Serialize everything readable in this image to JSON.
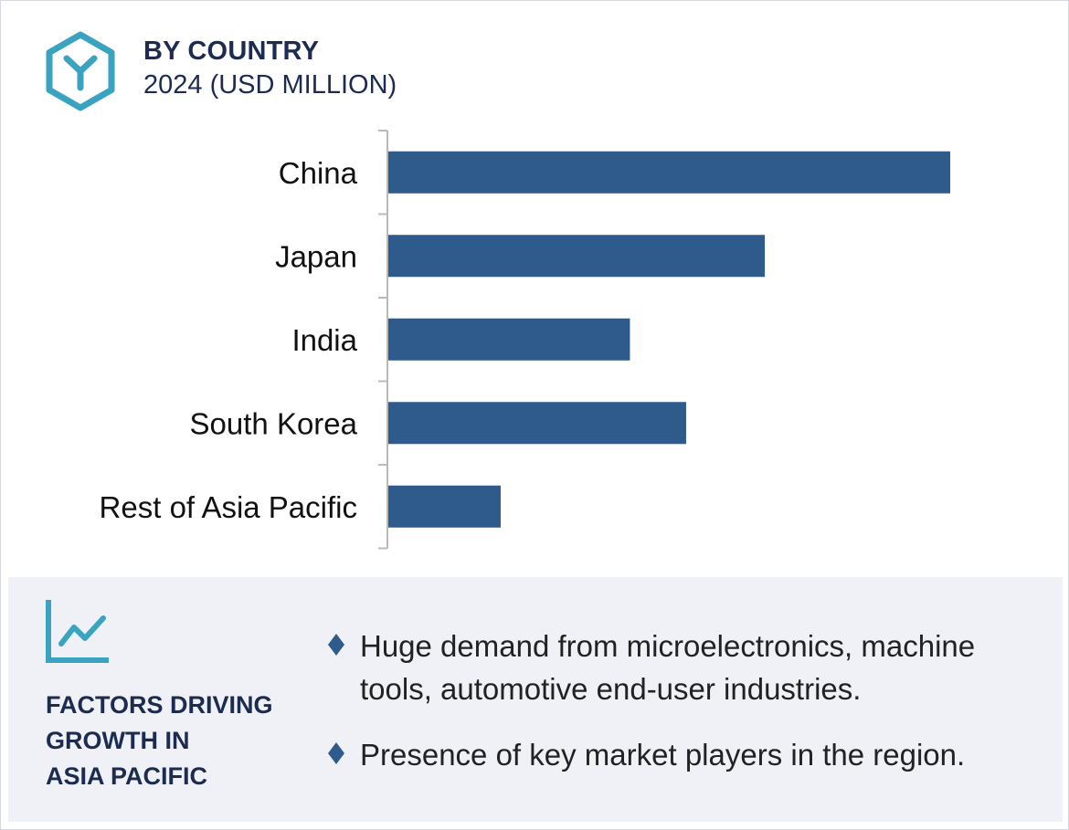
{
  "header": {
    "title": "BY COUNTRY",
    "subtitle": "2024 (USD MILLION)",
    "logo_icon": "hexagon-y-logo-icon"
  },
  "colors": {
    "bar": "#2e5b8c",
    "accent": "#3aa3bf",
    "heading": "#1c2b4f",
    "panel_bg": "#eff1f6"
  },
  "chart_data": {
    "type": "bar",
    "orientation": "horizontal",
    "title": "BY COUNTRY",
    "subtitle": "2024 (USD MILLION)",
    "categories": [
      "China",
      "Japan",
      "India",
      "South Korea",
      "Rest of Asia Pacific"
    ],
    "values": [
      100,
      67,
      43,
      53,
      20
    ],
    "xlim": [
      0,
      100
    ],
    "grid": false,
    "legend": "none"
  },
  "factors": {
    "icon": "line-chart-icon",
    "heading_lines": [
      "FACTORS DRIVING",
      "GROWTH IN",
      "ASIA PACIFIC"
    ],
    "bullet_icon": "diamond-bullet-icon",
    "bullets": [
      "Huge demand from microelectronics, machine tools, automotive end-user industries.",
      "Presence of key market players in the region."
    ]
  }
}
